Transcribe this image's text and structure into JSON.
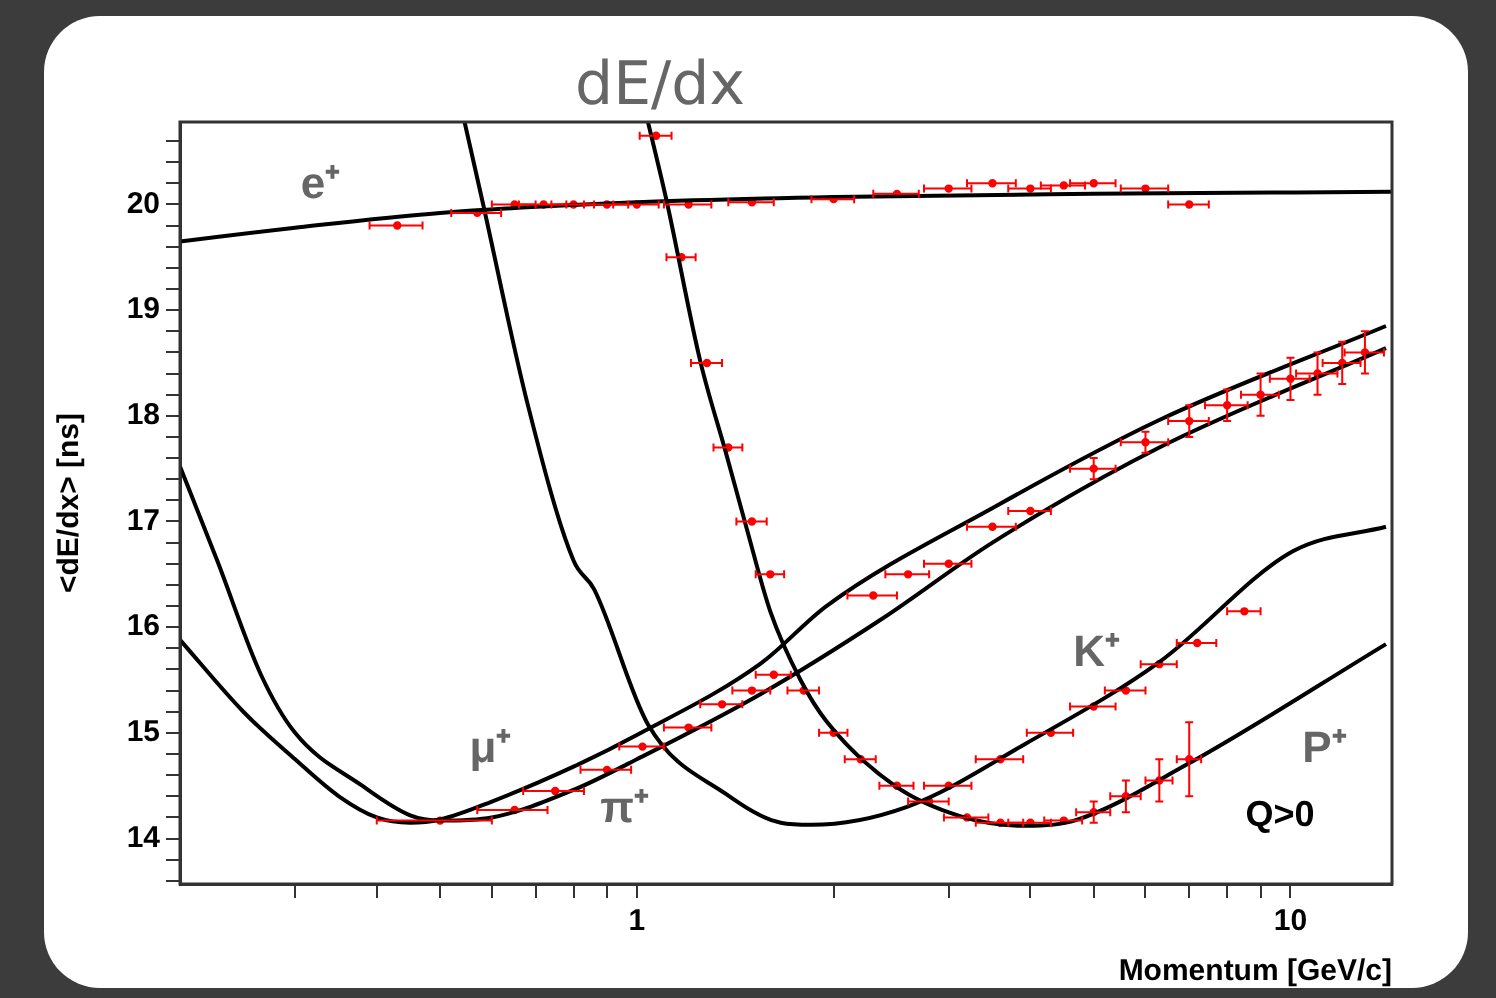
{
  "chart_data": {
    "type": "line",
    "title": "dE/dx",
    "xlabel": "Momentum [GeV/c]",
    "ylabel": "<dE/dx> [ns]",
    "log": "x",
    "grid": false,
    "legend": false,
    "xlim": [
      0.2,
      14.3
    ],
    "ylim": [
      13.57,
      20.78
    ],
    "xticks": [
      {
        "value": 0.3,
        "label": null
      },
      {
        "value": 0.4,
        "label": null
      },
      {
        "value": 0.5,
        "label": null
      },
      {
        "value": 0.6,
        "label": null
      },
      {
        "value": 0.7,
        "label": null
      },
      {
        "value": 0.8,
        "label": null
      },
      {
        "value": 0.9,
        "label": null
      },
      1,
      {
        "value": 2,
        "label": null
      },
      {
        "value": 3,
        "label": null
      },
      {
        "value": 4,
        "label": null
      },
      {
        "value": 5,
        "label": null
      },
      {
        "value": 6,
        "label": null
      },
      {
        "value": 7,
        "label": null
      },
      {
        "value": 8,
        "label": null
      },
      {
        "value": 9,
        "label": null
      },
      10
    ],
    "yticks": [
      {
        "value": 13.6,
        "label": null
      },
      {
        "value": 13.8,
        "label": null
      },
      14,
      {
        "value": 14.2,
        "label": null
      },
      {
        "value": 14.4,
        "label": null
      },
      {
        "value": 14.6,
        "label": null
      },
      {
        "value": 14.8,
        "label": null
      },
      15,
      {
        "value": 15.2,
        "label": null
      },
      {
        "value": 15.4,
        "label": null
      },
      {
        "value": 15.6,
        "label": null
      },
      {
        "value": 15.8,
        "label": null
      },
      16,
      {
        "value": 16.2,
        "label": null
      },
      {
        "value": 16.4,
        "label": null
      },
      {
        "value": 16.6,
        "label": null
      },
      {
        "value": 16.8,
        "label": null
      },
      17,
      {
        "value": 17.2,
        "label": null
      },
      {
        "value": 17.4,
        "label": null
      },
      {
        "value": 17.6,
        "label": null
      },
      {
        "value": 17.8,
        "label": null
      },
      18,
      {
        "value": 18.2,
        "label": null
      },
      {
        "value": 18.4,
        "label": null
      },
      {
        "value": 18.6,
        "label": null
      },
      {
        "value": 18.8,
        "label": null
      },
      19,
      {
        "value": 19.2,
        "label": null
      },
      {
        "value": 19.4,
        "label": null
      },
      {
        "value": 19.6,
        "label": null
      },
      {
        "value": 19.8,
        "label": null
      },
      20,
      {
        "value": 20.2,
        "label": null
      },
      {
        "value": 20.4,
        "label": null
      },
      {
        "value": 20.6,
        "label": null
      }
    ],
    "series": [
      {
        "color": "#000000",
        "x": [
          0.2,
          0.3,
          0.5,
          1,
          2,
          5,
          14.3
        ],
        "values": [
          19.65,
          19.78,
          19.92,
          20.02,
          20.07,
          20.1,
          20.12
        ]
      },
      {
        "color": "#000000",
        "x": [
          0.2,
          0.25,
          0.3,
          0.35,
          0.4,
          0.45,
          0.5,
          0.6,
          0.8,
          1,
          1.55,
          1.95,
          3.53,
          6.3,
          14
        ],
        "values": [
          15.88,
          15.2,
          14.75,
          14.4,
          14.2,
          14.15,
          14.18,
          14.35,
          14.68,
          14.98,
          15.66,
          16.2,
          17.14,
          17.96,
          18.85
        ]
      },
      {
        "color": "#000000",
        "x": [
          0.2,
          0.228,
          0.266,
          0.3,
          0.38,
          0.45,
          0.5,
          0.6,
          0.8,
          1,
          1.55,
          2.36,
          3.5,
          6.3,
          14
        ],
        "values": [
          17.52,
          16.63,
          15.55,
          15.0,
          14.5,
          14.22,
          14.17,
          14.2,
          14.46,
          14.75,
          15.37,
          16.07,
          16.8,
          17.7,
          18.64
        ]
      },
      {
        "color": "#000000",
        "x": [
          0.545,
          0.58,
          0.68,
          0.8,
          0.86,
          1.04,
          1.37,
          1.66,
          1.85,
          2.59,
          3.94,
          6.3,
          10.1,
          14
        ],
        "values": [
          20.78,
          20.04,
          18.12,
          16.63,
          16.36,
          15.08,
          14.42,
          14.15,
          14.13,
          14.3,
          14.9,
          15.67,
          16.72,
          16.95
        ]
      },
      {
        "color": "#000000",
        "x": [
          1.04,
          1.11,
          1.25,
          1.37,
          1.47,
          1.6,
          1.78,
          1.95,
          2.48,
          3.13,
          3.94,
          4.67,
          6.94,
          14
        ],
        "values": [
          20.78,
          20.04,
          18.52,
          17.64,
          16.95,
          16.15,
          15.5,
          15.11,
          14.5,
          14.21,
          14.12,
          14.17,
          14.7,
          15.84
        ]
      },
      {
        "type": "scatter",
        "color": "#ff0000",
        "x": [
          0.43,
          0.57,
          0.65,
          0.72,
          0.8,
          0.9,
          1.0,
          1.2,
          1.5,
          2,
          2.5,
          3,
          3.5,
          4,
          4.5,
          5,
          6,
          7,
          0.5,
          0.65,
          0.75,
          0.9,
          1.02,
          1.2,
          1.35,
          1.5,
          1.62,
          2.3,
          2.6,
          3,
          3.5,
          4,
          5,
          6,
          7,
          8,
          9,
          10,
          11,
          12,
          13,
          1.07,
          1.17,
          1.28,
          1.38,
          1.5,
          1.6,
          1.8,
          2.0,
          2.2,
          2.5,
          2.8,
          3.2,
          3.6,
          4.0,
          4.5,
          5.0,
          5.6,
          6.3,
          7.0,
          3.0,
          3.6,
          4.3,
          5.0,
          5.6,
          6.3,
          7.2,
          8.5
        ],
        "values": [
          19.8,
          19.92,
          20.0,
          20.0,
          20.0,
          20.0,
          20.0,
          20.0,
          20.02,
          20.05,
          20.1,
          20.15,
          20.2,
          20.15,
          20.18,
          20.2,
          20.15,
          20.0,
          14.17,
          14.27,
          14.45,
          14.65,
          14.87,
          15.05,
          15.27,
          15.4,
          15.55,
          16.3,
          16.5,
          16.6,
          16.95,
          17.1,
          17.5,
          17.75,
          17.95,
          18.1,
          18.2,
          18.35,
          18.4,
          18.5,
          18.6,
          20.65,
          19.5,
          18.5,
          17.7,
          17.0,
          16.5,
          15.4,
          15.0,
          14.75,
          14.5,
          14.35,
          14.2,
          14.15,
          14.15,
          14.17,
          14.25,
          14.4,
          14.55,
          14.75,
          14.5,
          14.75,
          15.0,
          15.25,
          15.4,
          15.65,
          15.85,
          16.15
        ],
        "xerrors": [
          0.04,
          0.05,
          0.05,
          0.06,
          0.06,
          0.07,
          0.08,
          0.1,
          0.12,
          0.15,
          0.2,
          0.25,
          0.3,
          0.3,
          0.35,
          0.4,
          0.5,
          0.5,
          0.1,
          0.08,
          0.08,
          0.08,
          0.08,
          0.1,
          0.1,
          0.1,
          0.1,
          0.2,
          0.2,
          0.25,
          0.3,
          0.3,
          0.4,
          0.5,
          0.5,
          0.6,
          0.6,
          0.7,
          0.8,
          0.8,
          0.9,
          0.06,
          0.06,
          0.07,
          0.07,
          0.08,
          0.08,
          0.1,
          0.1,
          0.12,
          0.15,
          0.2,
          0.25,
          0.3,
          0.3,
          0.3,
          0.3,
          0.3,
          0.3,
          0.3,
          0.25,
          0.3,
          0.35,
          0.4,
          0.4,
          0.4,
          0.5,
          0.5
        ],
        "errors": [
          null,
          null,
          null,
          null,
          null,
          null,
          null,
          null,
          null,
          null,
          null,
          null,
          null,
          null,
          null,
          null,
          null,
          null,
          null,
          null,
          null,
          null,
          null,
          null,
          null,
          null,
          null,
          null,
          null,
          null,
          null,
          null,
          0.1,
          0.1,
          0.15,
          0.15,
          0.2,
          0.2,
          0.2,
          0.2,
          0.2,
          null,
          null,
          null,
          null,
          null,
          null,
          null,
          null,
          null,
          null,
          null,
          null,
          null,
          null,
          null,
          0.1,
          0.15,
          0.2,
          0.35,
          null,
          null,
          null,
          null,
          null,
          null,
          null,
          null
        ]
      }
    ],
    "annotations": [
      "e⁺",
      "μ⁺",
      "π⁺",
      "K⁺",
      "P⁺",
      "Q>0"
    ]
  }
}
